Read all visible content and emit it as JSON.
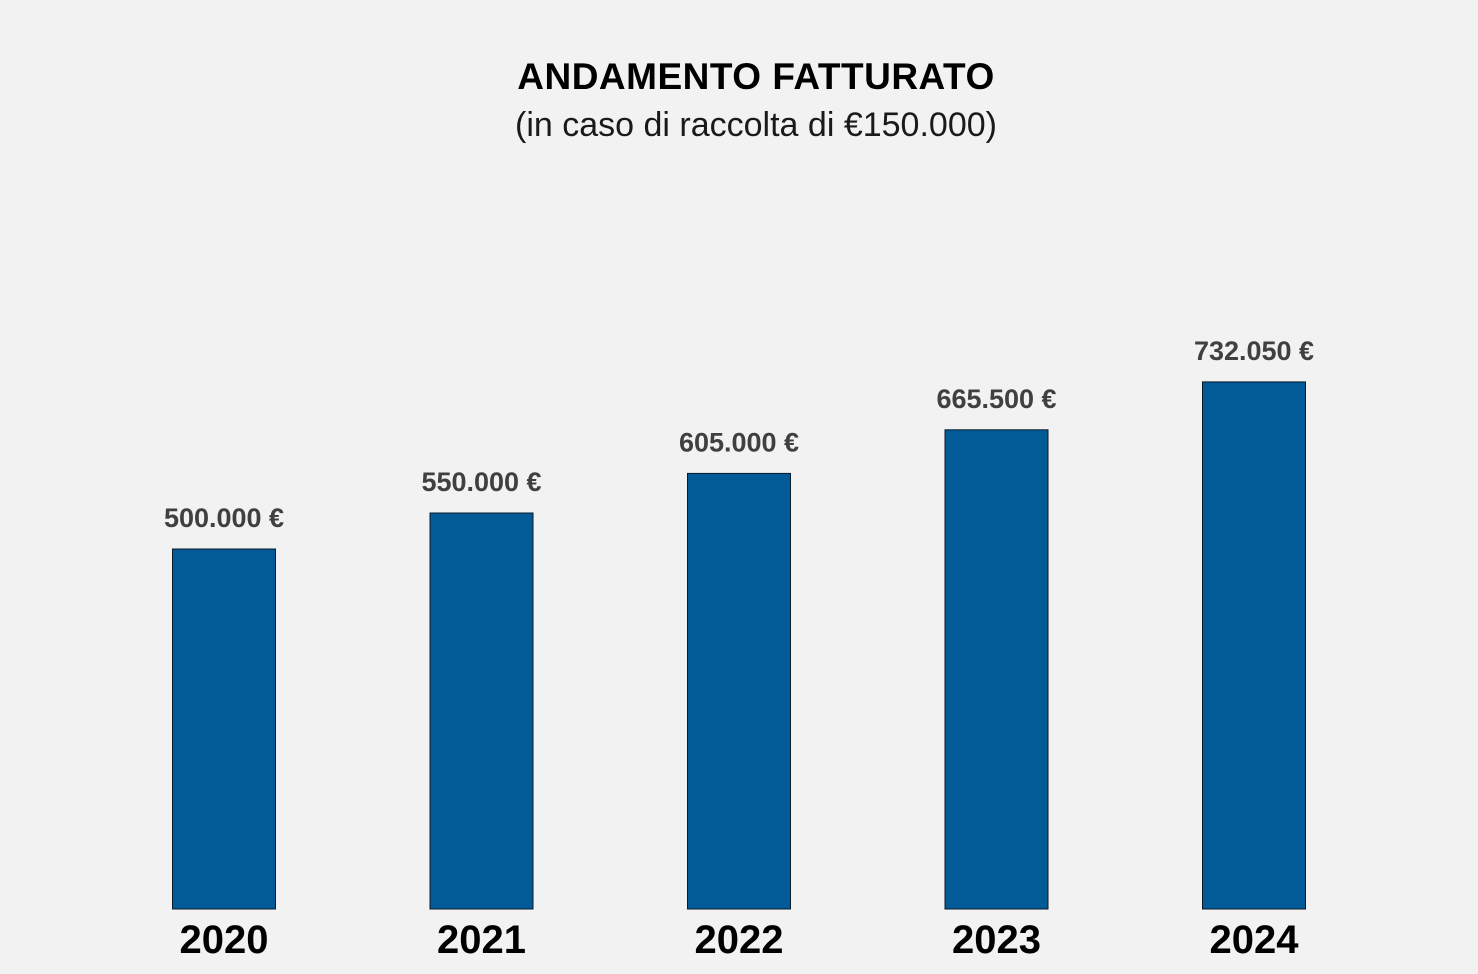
{
  "chart_data": {
    "type": "bar",
    "title": "ANDAMENTO FATTURATO",
    "subtitle": "(in caso di raccolta di €150.000)",
    "categories": [
      "2020",
      "2021",
      "2022",
      "2023",
      "2024"
    ],
    "values": [
      500000,
      550000,
      605000,
      665500,
      732050
    ],
    "value_labels": [
      "500.000 €",
      "550.000 €",
      "605.000 €",
      "665.500 €",
      "732.050 €"
    ],
    "xlabel": "",
    "ylabel": "",
    "ylim": [
      0,
      732050
    ],
    "grid": false,
    "legend": "none",
    "colors": {
      "bar_fill": "#025b96",
      "bar_stroke": "#0b1a2a",
      "background": "#f2f2f2",
      "value_label": "#404040",
      "category_label": "#000000"
    }
  }
}
